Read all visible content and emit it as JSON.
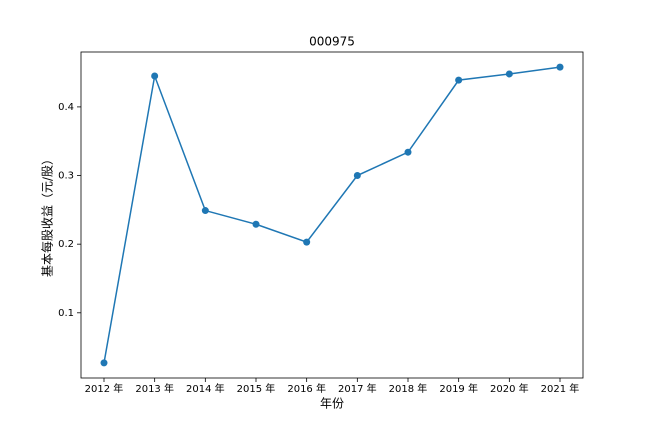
{
  "chart_data": {
    "type": "line",
    "title": "000975",
    "x_label": "年份",
    "y_label": "基本每股收益（元/股）",
    "categories": [
      "2012 年",
      "2013 年",
      "2014 年",
      "2015 年",
      "2016 年",
      "2017 年",
      "2018 年",
      "2019 年",
      "2020 年",
      "2021 年"
    ],
    "values": [
      0.027,
      0.445,
      0.249,
      0.229,
      0.203,
      0.3,
      0.334,
      0.439,
      0.448,
      0.458
    ],
    "color": "#1f77b4",
    "ylim": [
      0.005,
      0.48
    ],
    "yticks": [
      0.1,
      0.2,
      0.3,
      0.4
    ],
    "grid": false
  }
}
